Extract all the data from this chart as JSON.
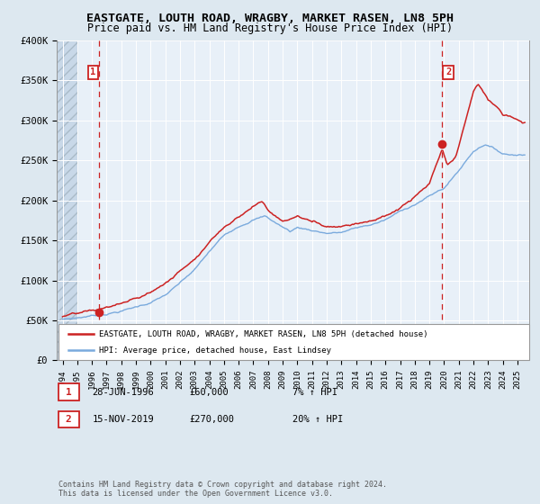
{
  "title_line1": "EASTGATE, LOUTH ROAD, WRAGBY, MARKET RASEN, LN8 5PH",
  "title_line2": "Price paid vs. HM Land Registry's House Price Index (HPI)",
  "ylim": [
    0,
    400000
  ],
  "yticks": [
    0,
    50000,
    100000,
    150000,
    200000,
    250000,
    300000,
    350000,
    400000
  ],
  "ytick_labels": [
    "£0",
    "£50K",
    "£100K",
    "£150K",
    "£200K",
    "£250K",
    "£300K",
    "£350K",
    "£400K"
  ],
  "xlim_start": 1993.6,
  "xlim_end": 2025.8,
  "hpi_color": "#7aaadd",
  "property_color": "#cc2222",
  "sale1_date": 1996.49,
  "sale1_price": 60000,
  "sale2_date": 2019.88,
  "sale2_price": 270000,
  "legend_line1": "EASTGATE, LOUTH ROAD, WRAGBY, MARKET RASEN, LN8 5PH (detached house)",
  "legend_line2": "HPI: Average price, detached house, East Lindsey",
  "annotation1_date": "28-JUN-1996",
  "annotation1_price": "£60,000",
  "annotation1_hpi": "7% ↑ HPI",
  "annotation2_date": "15-NOV-2019",
  "annotation2_price": "£270,000",
  "annotation2_hpi": "20% ↑ HPI",
  "footer": "Contains HM Land Registry data © Crown copyright and database right 2024.\nThis data is licensed under the Open Government Licence v3.0.",
  "bg_color": "#dde8f0",
  "plot_bg_color": "#e8f0f8",
  "grid_color": "#ffffff"
}
